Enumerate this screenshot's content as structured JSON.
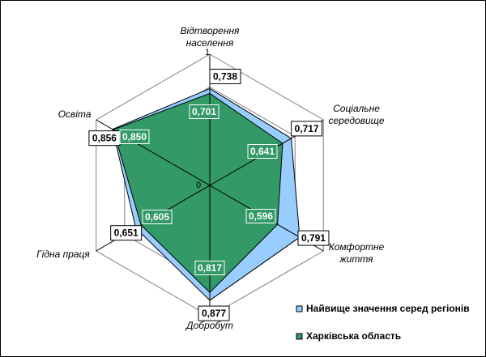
{
  "chart_data": {
    "type": "radar",
    "categories": [
      [
        "Відтворення",
        "населення"
      ],
      [
        "Соціальне",
        "середовище"
      ],
      [
        "Комфортне",
        "життя"
      ],
      [
        "Добробут"
      ],
      [
        "Гідна праця"
      ],
      [
        "Освіта"
      ]
    ],
    "series": [
      {
        "name": "Найвище значення серед регіонів",
        "values": [
          0.738,
          0.717,
          0.791,
          0.877,
          0.651,
          0.856
        ],
        "labels": [
          "0,738",
          "0,717",
          "0,791",
          "0,877",
          "0,651",
          "0,856"
        ],
        "color": "#99ccff"
      },
      {
        "name": "Харківська область",
        "values": [
          0.701,
          0.641,
          0.596,
          0.817,
          0.605,
          0.85
        ],
        "labels": [
          "0,701",
          "0,641",
          "0,596",
          "0,817",
          "0,605",
          "0,850"
        ],
        "color": "#339966"
      }
    ],
    "rlim": [
      0,
      1
    ],
    "tick_labels": [
      "0",
      "1"
    ],
    "grid": true,
    "legend_position": "bottom-right"
  }
}
